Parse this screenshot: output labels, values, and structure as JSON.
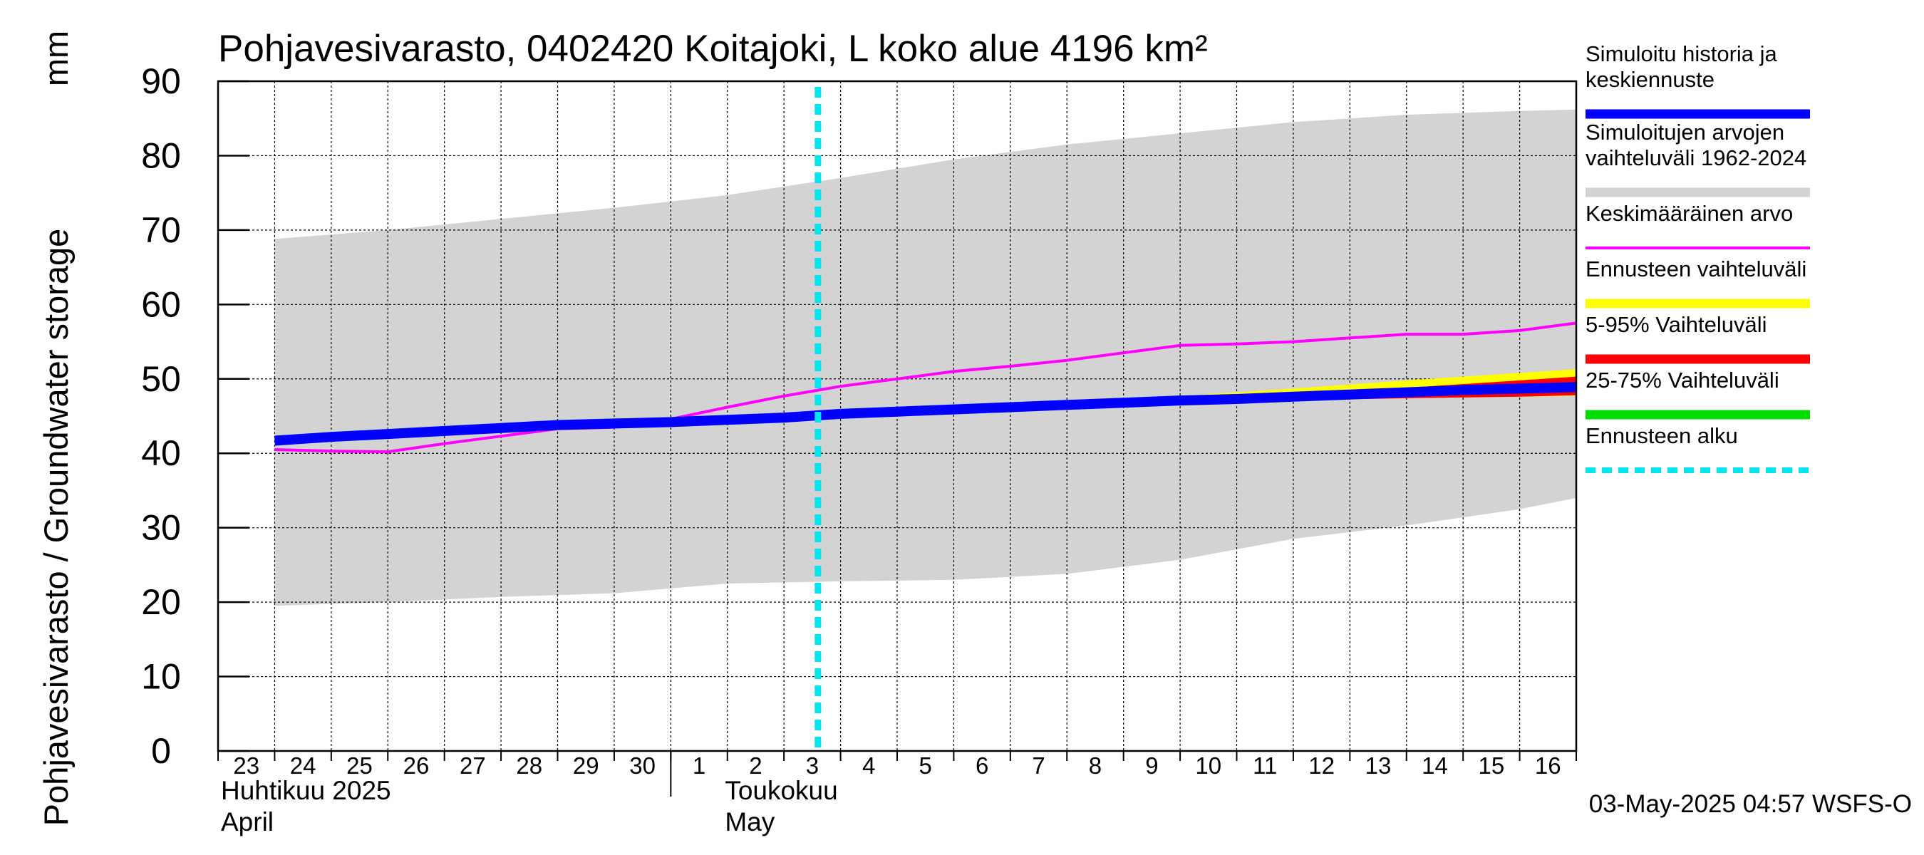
{
  "chart_data": {
    "type": "area",
    "title": "Pohjavesivarasto, 0402420 Koitajoki, L koko alue 4196 km²",
    "ylabel": "Pohjavesivarasto / Groundwater storage",
    "yunit": "mm",
    "ylim": [
      0,
      90
    ],
    "yticks": [
      0,
      10,
      20,
      30,
      40,
      50,
      60,
      70,
      80,
      90
    ],
    "grid": true,
    "legend_position": "right",
    "x_start": "2025-04-23",
    "x_end": "2025-05-16",
    "x_tick_labels": [
      "23",
      "24",
      "25",
      "26",
      "27",
      "28",
      "29",
      "30",
      "1",
      "2",
      "3",
      "4",
      "5",
      "6",
      "7",
      "8",
      "9",
      "10",
      "11",
      "12",
      "13",
      "14",
      "15",
      "16"
    ],
    "month_labels": [
      {
        "fi": "Huhtikuu  2025",
        "en": "April"
      },
      {
        "fi": "Toukokuu",
        "en": "May"
      }
    ],
    "forecast_start": "2025-05-03",
    "footer": "03-May-2025 04:57 WSFS-O",
    "colors": {
      "history": "#0000ff",
      "range": "#d3d3d3",
      "mean": "#ff00ff",
      "forecast_range": "#ffff00",
      "p5_95": "#ff0000",
      "p25_75": "#00dd00",
      "forecast_start": "#00e5ee"
    },
    "legend": [
      {
        "key": "history",
        "lines": [
          "Simuloitu historia ja",
          "keskiennuste"
        ],
        "style": "thick"
      },
      {
        "key": "range",
        "lines": [
          "Simuloitujen arvojen",
          "vaihteluväli 1962-2024"
        ],
        "style": "thick"
      },
      {
        "key": "mean",
        "lines": [
          "Keskimääräinen arvo"
        ],
        "style": "thin"
      },
      {
        "key": "forecast_range",
        "lines": [
          "Ennusteen vaihteluväli"
        ],
        "style": "thick"
      },
      {
        "key": "p5_95",
        "lines": [
          "5-95% Vaihteluväli"
        ],
        "style": "thick"
      },
      {
        "key": "p25_75",
        "lines": [
          "25-75% Vaihteluväli"
        ],
        "style": "thick"
      },
      {
        "key": "forecast_start",
        "lines": [
          "Ennusteen alku"
        ],
        "style": "dashed"
      }
    ],
    "series": {
      "range_max": [
        [
          "2025-04-23",
          68.8
        ],
        [
          "2025-04-25",
          70.0
        ],
        [
          "2025-04-27",
          71.5
        ],
        [
          "2025-04-29",
          73.0
        ],
        [
          "2025-05-01",
          74.7
        ],
        [
          "2025-05-03",
          77.0
        ],
        [
          "2025-05-05",
          79.5
        ],
        [
          "2025-05-07",
          81.5
        ],
        [
          "2025-05-09",
          83.0
        ],
        [
          "2025-05-11",
          84.5
        ],
        [
          "2025-05-13",
          85.5
        ],
        [
          "2025-05-15",
          86.0
        ],
        [
          "2025-05-16",
          86.2
        ]
      ],
      "range_min": [
        [
          "2025-04-23",
          19.5
        ],
        [
          "2025-04-25",
          20.0
        ],
        [
          "2025-04-27",
          20.7
        ],
        [
          "2025-04-29",
          21.2
        ],
        [
          "2025-05-01",
          22.5
        ],
        [
          "2025-05-03",
          22.8
        ],
        [
          "2025-05-05",
          23.0
        ],
        [
          "2025-05-07",
          23.8
        ],
        [
          "2025-05-09",
          25.7
        ],
        [
          "2025-05-11",
          28.5
        ],
        [
          "2025-05-13",
          30.3
        ],
        [
          "2025-05-15",
          32.5
        ],
        [
          "2025-05-16",
          34.0
        ]
      ],
      "mean": [
        [
          "2025-04-23",
          40.5
        ],
        [
          "2025-04-24",
          40.3
        ],
        [
          "2025-04-25",
          40.2
        ],
        [
          "2025-04-26",
          41.3
        ],
        [
          "2025-04-27",
          42.3
        ],
        [
          "2025-04-28",
          43.3
        ],
        [
          "2025-04-29",
          43.5
        ],
        [
          "2025-04-30",
          44.6
        ],
        [
          "2025-05-01",
          46.2
        ],
        [
          "2025-05-02",
          47.7
        ],
        [
          "2025-05-03",
          49.0
        ],
        [
          "2025-05-04",
          50.0
        ],
        [
          "2025-05-05",
          51.0
        ],
        [
          "2025-05-06",
          51.7
        ],
        [
          "2025-05-07",
          52.5
        ],
        [
          "2025-05-08",
          53.5
        ],
        [
          "2025-05-09",
          54.5
        ],
        [
          "2025-05-10",
          54.7
        ],
        [
          "2025-05-11",
          55.0
        ],
        [
          "2025-05-12",
          55.5
        ],
        [
          "2025-05-13",
          56.0
        ],
        [
          "2025-05-14",
          56.0
        ],
        [
          "2025-05-15",
          56.5
        ],
        [
          "2025-05-16",
          57.5
        ]
      ],
      "history": [
        [
          "2025-04-23",
          41.7
        ],
        [
          "2025-04-24",
          42.2
        ],
        [
          "2025-04-25",
          42.6
        ],
        [
          "2025-04-26",
          43.0
        ],
        [
          "2025-04-27",
          43.4
        ],
        [
          "2025-04-28",
          43.8
        ],
        [
          "2025-04-29",
          44.0
        ],
        [
          "2025-04-30",
          44.2
        ],
        [
          "2025-05-01",
          44.5
        ],
        [
          "2025-05-02",
          44.8
        ],
        [
          "2025-05-03",
          45.3
        ]
      ],
      "median_forecast": [
        [
          "2025-05-03",
          45.3
        ],
        [
          "2025-05-04",
          45.6
        ],
        [
          "2025-05-05",
          45.9
        ],
        [
          "2025-05-06",
          46.2
        ],
        [
          "2025-05-07",
          46.5
        ],
        [
          "2025-05-08",
          46.8
        ],
        [
          "2025-05-09",
          47.1
        ],
        [
          "2025-05-10",
          47.3
        ],
        [
          "2025-05-11",
          47.6
        ],
        [
          "2025-05-12",
          47.9
        ],
        [
          "2025-05-13",
          48.2
        ],
        [
          "2025-05-14",
          48.5
        ],
        [
          "2025-05-15",
          48.7
        ],
        [
          "2025-05-16",
          48.9
        ]
      ],
      "forecast_max": [
        [
          "2025-05-03",
          45.3
        ],
        [
          "2025-05-05",
          46.0
        ],
        [
          "2025-05-07",
          46.8
        ],
        [
          "2025-05-09",
          47.7
        ],
        [
          "2025-05-11",
          48.7
        ],
        [
          "2025-05-13",
          49.8
        ],
        [
          "2025-05-15",
          50.8
        ],
        [
          "2025-05-16",
          51.3
        ]
      ],
      "forecast_min": [
        [
          "2025-05-03",
          45.3
        ],
        [
          "2025-05-05",
          45.8
        ],
        [
          "2025-05-07",
          46.3
        ],
        [
          "2025-05-09",
          46.8
        ],
        [
          "2025-05-11",
          47.2
        ],
        [
          "2025-05-13",
          47.5
        ],
        [
          "2025-05-15",
          47.6
        ],
        [
          "2025-05-16",
          47.7
        ]
      ],
      "p95": [
        [
          "2025-05-03",
          45.3
        ],
        [
          "2025-05-07",
          46.5
        ],
        [
          "2025-05-09",
          47.2
        ],
        [
          "2025-05-11",
          47.9
        ],
        [
          "2025-05-13",
          48.8
        ],
        [
          "2025-05-15",
          49.8
        ],
        [
          "2025-05-16",
          50.3
        ]
      ],
      "p5": [
        [
          "2025-05-03",
          45.3
        ],
        [
          "2025-05-07",
          46.3
        ],
        [
          "2025-05-09",
          46.7
        ],
        [
          "2025-05-11",
          47.1
        ],
        [
          "2025-05-13",
          47.4
        ],
        [
          "2025-05-15",
          47.6
        ],
        [
          "2025-05-16",
          47.8
        ]
      ],
      "p75": [
        [
          "2025-05-03",
          45.3
        ],
        [
          "2025-05-09",
          47.1
        ],
        [
          "2025-05-13",
          48.4
        ],
        [
          "2025-05-16",
          49.3
        ]
      ],
      "p25": [
        [
          "2025-05-03",
          45.3
        ],
        [
          "2025-05-09",
          46.9
        ],
        [
          "2025-05-13",
          47.9
        ],
        [
          "2025-05-16",
          48.4
        ]
      ]
    }
  }
}
